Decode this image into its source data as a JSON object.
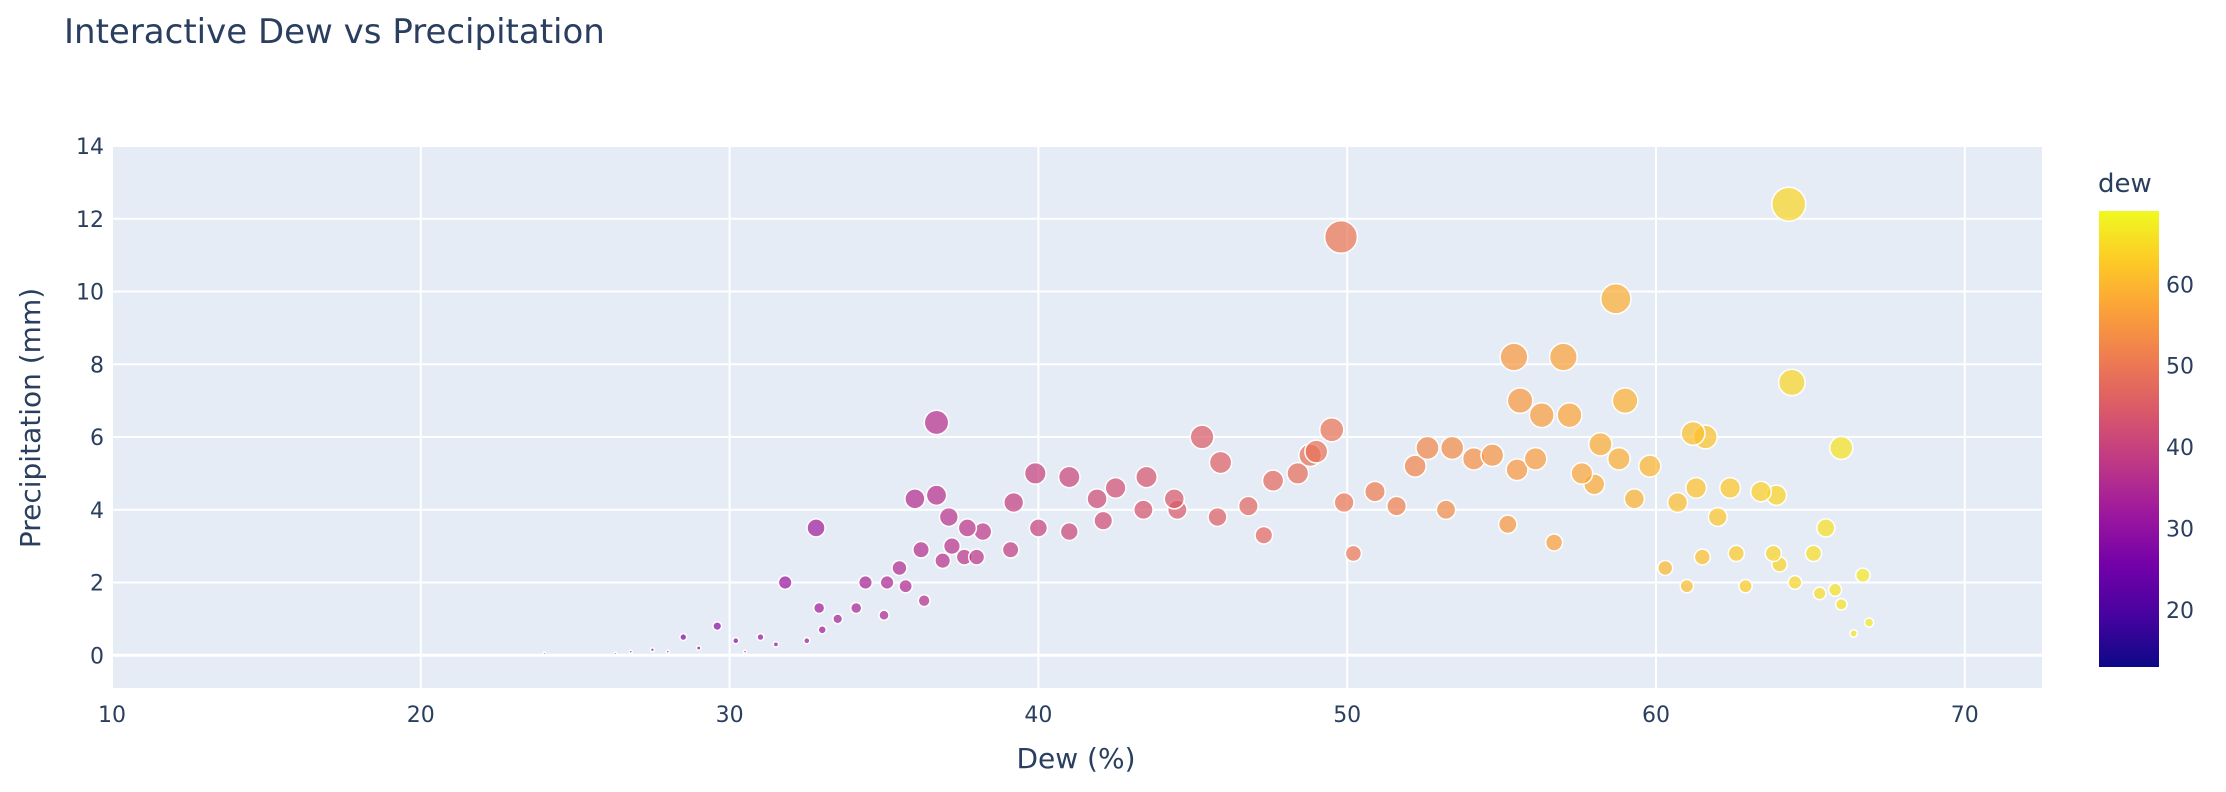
{
  "chart_data": {
    "type": "scatter",
    "title": "Interactive Dew vs Precipitation",
    "xlabel": "Dew (%)",
    "ylabel": "Precipitation (mm)",
    "xlim": [
      10,
      72.5
    ],
    "ylim": [
      -0.9,
      14
    ],
    "xticks": [
      10,
      20,
      30,
      40,
      50,
      60,
      70
    ],
    "yticks": [
      0,
      2,
      4,
      6,
      8,
      10,
      12,
      14
    ],
    "grid": true,
    "colorbar": {
      "title": "dew",
      "ticks": [
        20,
        30,
        40,
        50,
        60
      ],
      "range": [
        13,
        69
      ],
      "colorscale": [
        "#0d0887",
        "#46039f",
        "#7201a8",
        "#9c179e",
        "#bd3786",
        "#d8576b",
        "#ed7953",
        "#fb9f3a",
        "#fdca26",
        "#f0f921"
      ]
    },
    "marker_size_encodes": "precipitation",
    "points": [
      {
        "x": 64.3,
        "y": 12.4
      },
      {
        "x": 49.8,
        "y": 11.5
      },
      {
        "x": 58.7,
        "y": 9.8
      },
      {
        "x": 55.4,
        "y": 8.2
      },
      {
        "x": 57.0,
        "y": 8.2
      },
      {
        "x": 64.4,
        "y": 7.5
      },
      {
        "x": 55.6,
        "y": 7.0
      },
      {
        "x": 59.0,
        "y": 7.0
      },
      {
        "x": 56.3,
        "y": 6.6
      },
      {
        "x": 57.2,
        "y": 6.6
      },
      {
        "x": 36.7,
        "y": 6.4
      },
      {
        "x": 49.5,
        "y": 6.2
      },
      {
        "x": 61.2,
        "y": 6.1
      },
      {
        "x": 61.6,
        "y": 6.0
      },
      {
        "x": 45.3,
        "y": 6.0
      },
      {
        "x": 66.0,
        "y": 5.7
      },
      {
        "x": 52.6,
        "y": 5.7
      },
      {
        "x": 53.4,
        "y": 5.7
      },
      {
        "x": 58.2,
        "y": 5.8
      },
      {
        "x": 49.0,
        "y": 5.6
      },
      {
        "x": 48.8,
        "y": 5.5
      },
      {
        "x": 54.7,
        "y": 5.5
      },
      {
        "x": 54.1,
        "y": 5.4
      },
      {
        "x": 56.1,
        "y": 5.4
      },
      {
        "x": 58.8,
        "y": 5.4
      },
      {
        "x": 45.9,
        "y": 5.3
      },
      {
        "x": 52.2,
        "y": 5.2
      },
      {
        "x": 59.8,
        "y": 5.2
      },
      {
        "x": 55.5,
        "y": 5.1
      },
      {
        "x": 57.6,
        "y": 5.0
      },
      {
        "x": 48.4,
        "y": 5.0
      },
      {
        "x": 39.9,
        "y": 5.0
      },
      {
        "x": 41.0,
        "y": 4.9
      },
      {
        "x": 43.5,
        "y": 4.9
      },
      {
        "x": 47.6,
        "y": 4.8
      },
      {
        "x": 58.0,
        "y": 4.7
      },
      {
        "x": 62.4,
        "y": 4.6
      },
      {
        "x": 42.5,
        "y": 4.6
      },
      {
        "x": 61.3,
        "y": 4.6
      },
      {
        "x": 63.4,
        "y": 4.5
      },
      {
        "x": 50.9,
        "y": 4.5
      },
      {
        "x": 63.9,
        "y": 4.4
      },
      {
        "x": 36.7,
        "y": 4.4
      },
      {
        "x": 36.0,
        "y": 4.3
      },
      {
        "x": 41.9,
        "y": 4.3
      },
      {
        "x": 59.3,
        "y": 4.3
      },
      {
        "x": 44.4,
        "y": 4.3
      },
      {
        "x": 39.2,
        "y": 4.2
      },
      {
        "x": 60.7,
        "y": 4.2
      },
      {
        "x": 49.9,
        "y": 4.2
      },
      {
        "x": 51.6,
        "y": 4.1
      },
      {
        "x": 46.8,
        "y": 4.1
      },
      {
        "x": 43.4,
        "y": 4.0
      },
      {
        "x": 44.5,
        "y": 4.0
      },
      {
        "x": 53.2,
        "y": 4.0
      },
      {
        "x": 37.1,
        "y": 3.8
      },
      {
        "x": 62.0,
        "y": 3.8
      },
      {
        "x": 45.8,
        "y": 3.8
      },
      {
        "x": 42.1,
        "y": 3.7
      },
      {
        "x": 55.2,
        "y": 3.6
      },
      {
        "x": 32.8,
        "y": 3.5
      },
      {
        "x": 37.7,
        "y": 3.5
      },
      {
        "x": 65.5,
        "y": 3.5
      },
      {
        "x": 40.0,
        "y": 3.5
      },
      {
        "x": 41.0,
        "y": 3.4
      },
      {
        "x": 38.2,
        "y": 3.4
      },
      {
        "x": 47.3,
        "y": 3.3
      },
      {
        "x": 56.7,
        "y": 3.1
      },
      {
        "x": 37.2,
        "y": 3.0
      },
      {
        "x": 36.2,
        "y": 2.9
      },
      {
        "x": 39.1,
        "y": 2.9
      },
      {
        "x": 50.2,
        "y": 2.8
      },
      {
        "x": 63.8,
        "y": 2.8
      },
      {
        "x": 65.1,
        "y": 2.8
      },
      {
        "x": 62.6,
        "y": 2.8
      },
      {
        "x": 37.6,
        "y": 2.7
      },
      {
        "x": 38.0,
        "y": 2.7
      },
      {
        "x": 61.5,
        "y": 2.7
      },
      {
        "x": 36.9,
        "y": 2.6
      },
      {
        "x": 35.5,
        "y": 2.4
      },
      {
        "x": 64.0,
        "y": 2.5
      },
      {
        "x": 60.3,
        "y": 2.4
      },
      {
        "x": 66.7,
        "y": 2.2
      },
      {
        "x": 31.8,
        "y": 2.0
      },
      {
        "x": 34.4,
        "y": 2.0
      },
      {
        "x": 35.1,
        "y": 2.0
      },
      {
        "x": 35.7,
        "y": 1.9
      },
      {
        "x": 61.0,
        "y": 1.9
      },
      {
        "x": 62.9,
        "y": 1.9
      },
      {
        "x": 64.5,
        "y": 2.0
      },
      {
        "x": 65.3,
        "y": 1.7
      },
      {
        "x": 65.8,
        "y": 1.8
      },
      {
        "x": 36.3,
        "y": 1.5
      },
      {
        "x": 32.9,
        "y": 1.3
      },
      {
        "x": 34.1,
        "y": 1.3
      },
      {
        "x": 66.0,
        "y": 1.4
      },
      {
        "x": 35.0,
        "y": 1.1
      },
      {
        "x": 33.5,
        "y": 1.0
      },
      {
        "x": 66.9,
        "y": 0.9
      },
      {
        "x": 29.6,
        "y": 0.8
      },
      {
        "x": 33.0,
        "y": 0.7
      },
      {
        "x": 66.4,
        "y": 0.6
      },
      {
        "x": 28.5,
        "y": 0.5
      },
      {
        "x": 31.0,
        "y": 0.5
      },
      {
        "x": 32.5,
        "y": 0.4
      },
      {
        "x": 30.2,
        "y": 0.4
      },
      {
        "x": 31.5,
        "y": 0.3
      },
      {
        "x": 29.0,
        "y": 0.2
      },
      {
        "x": 27.5,
        "y": 0.15
      },
      {
        "x": 28.0,
        "y": 0.1
      },
      {
        "x": 26.8,
        "y": 0.1
      },
      {
        "x": 26.3,
        "y": 0.05
      },
      {
        "x": 24.0,
        "y": 0.05
      },
      {
        "x": 30.5,
        "y": 0.1
      }
    ]
  }
}
